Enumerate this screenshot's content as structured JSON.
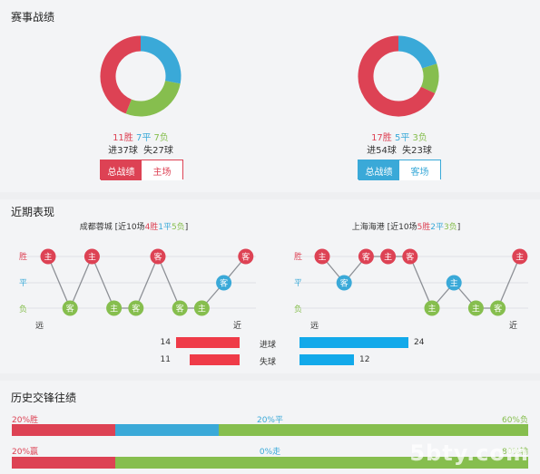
{
  "sections": {
    "season": "赛事战绩",
    "recent": "近期表现",
    "h2h": "历史交锋往绩"
  },
  "colors": {
    "win": "#dd4254",
    "draw": "#3aa9d8",
    "loss": "#86be4e",
    "goals_for": "#ef3b48",
    "goals_against": "#12a9ea"
  },
  "season": {
    "left": {
      "wins": "11胜",
      "draws": "7平",
      "losses": "7负",
      "goals": "进37球  失27球",
      "win_count": 11,
      "draw_count": 7,
      "loss_count": 7,
      "tab_active": "总战绩",
      "tab_other": "主场"
    },
    "right": {
      "wins": "17胜",
      "draws": "5平",
      "losses": "3负",
      "goals": "进54球  失23球",
      "win_count": 17,
      "draw_count": 5,
      "loss_count": 3,
      "tab_active": "总战绩",
      "tab_other": "客场"
    }
  },
  "recent": {
    "left": {
      "team": "成都蓉城",
      "summary_prefix": " [近10场",
      "wins": "4胜",
      "draws": "1平",
      "losses": "5负",
      "summary_suffix": "]",
      "results": [
        "win",
        "loss",
        "win",
        "loss",
        "loss",
        "win",
        "loss",
        "loss",
        "draw",
        "win"
      ],
      "venues": [
        "主",
        "客",
        "主",
        "主",
        "客",
        "客",
        "客",
        "主",
        "客",
        "客"
      ],
      "far": "远",
      "near": "近"
    },
    "right": {
      "team": "上海海港",
      "summary_prefix": " [近10场",
      "wins": "5胜",
      "draws": "2平",
      "losses": "3负",
      "summary_suffix": "]",
      "results": [
        "win",
        "draw",
        "win",
        "win",
        "win",
        "loss",
        "draw",
        "loss",
        "loss",
        "win"
      ],
      "venues": [
        "主",
        "客",
        "客",
        "主",
        "客",
        "主",
        "主",
        "主",
        "客",
        "主"
      ],
      "far": "远",
      "near": "近"
    },
    "row_labels": {
      "win": "胜",
      "draw": "平",
      "loss": "负"
    },
    "stats": {
      "goals_label": "进球",
      "conceded_label": "失球",
      "left_goals": 14,
      "right_goals": 24,
      "left_conceded": 11,
      "right_conceded": 12
    }
  },
  "h2h": {
    "row1": {
      "left": "20%胜",
      "mid": "20%平",
      "right": "60%负",
      "win_pct": 20,
      "draw_pct": 20,
      "loss_pct": 60
    },
    "row2": {
      "left": "20%赢",
      "mid": "0%走",
      "right": "80%输",
      "win_pct": 20,
      "draw_pct": 0,
      "loss_pct": 80
    }
  },
  "watermark": "5bty.com"
}
